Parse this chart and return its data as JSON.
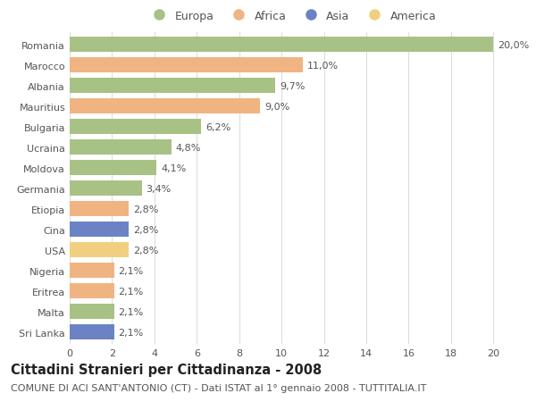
{
  "categories": [
    "Romania",
    "Marocco",
    "Albania",
    "Mauritius",
    "Bulgaria",
    "Ucraina",
    "Moldova",
    "Germania",
    "Etiopia",
    "Cina",
    "USA",
    "Nigeria",
    "Eritrea",
    "Malta",
    "Sri Lanka"
  ],
  "values": [
    20.0,
    11.0,
    9.7,
    9.0,
    6.2,
    4.8,
    4.1,
    3.4,
    2.8,
    2.8,
    2.8,
    2.1,
    2.1,
    2.1,
    2.1
  ],
  "labels": [
    "20,0%",
    "11,0%",
    "9,7%",
    "9,0%",
    "6,2%",
    "4,8%",
    "4,1%",
    "3,4%",
    "2,8%",
    "2,8%",
    "2,8%",
    "2,1%",
    "2,1%",
    "2,1%",
    "2,1%"
  ],
  "continents": [
    "Europa",
    "Africa",
    "Europa",
    "Africa",
    "Europa",
    "Europa",
    "Europa",
    "Europa",
    "Africa",
    "Asia",
    "America",
    "Africa",
    "Africa",
    "Europa",
    "Asia"
  ],
  "colors": {
    "Europa": "#a8c185",
    "Africa": "#f0b482",
    "Asia": "#6b82c4",
    "America": "#f0d080"
  },
  "title": "Cittadini Stranieri per Cittadinanza - 2008",
  "subtitle": "COMUNE DI ACI SANT'ANTONIO (CT) - Dati ISTAT al 1° gennaio 2008 - TUTTITALIA.IT",
  "xlim": [
    0,
    21
  ],
  "xticks": [
    0,
    2,
    4,
    6,
    8,
    10,
    12,
    14,
    16,
    18,
    20
  ],
  "background_color": "#ffffff",
  "grid_color": "#dddddd",
  "bar_height": 0.72,
  "title_fontsize": 10.5,
  "subtitle_fontsize": 8,
  "label_fontsize": 8,
  "tick_fontsize": 8,
  "legend_fontsize": 9
}
